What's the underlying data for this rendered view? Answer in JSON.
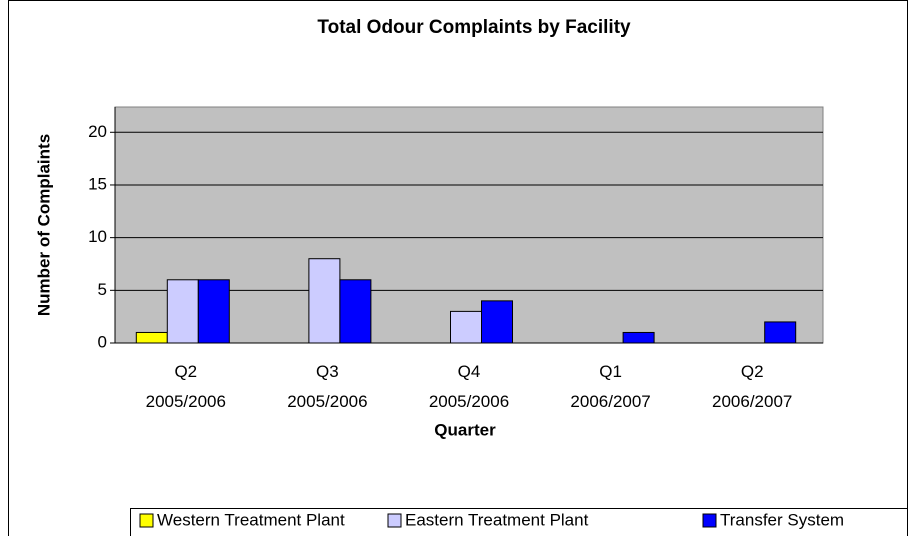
{
  "chart_data": {
    "type": "bar",
    "title": "Total Odour Complaints by Facility",
    "x_label": "Quarter",
    "y_label": "Number of Complaints",
    "categories": [
      "Q2\n2005/2006",
      "Q3\n2005/2006",
      "Q4\n2005/2006",
      "Q1\n2006/2007",
      "Q2\n2006/2007"
    ],
    "series": [
      {
        "name": "Western Treatment Plant",
        "color": "#ffff00",
        "values": [
          1,
          0,
          0,
          0,
          0
        ]
      },
      {
        "name": "Eastern Treatment Plant",
        "color": "#ccccff",
        "values": [
          6,
          8,
          3,
          0,
          0
        ]
      },
      {
        "name": "Transfer System",
        "color": "#0000ff",
        "values": [
          6,
          6,
          4,
          1,
          2
        ]
      }
    ],
    "ylim": [
      0,
      22.4
    ],
    "yticks": [
      0,
      5,
      10,
      15,
      20
    ],
    "grid": true,
    "legend": "bottom"
  }
}
